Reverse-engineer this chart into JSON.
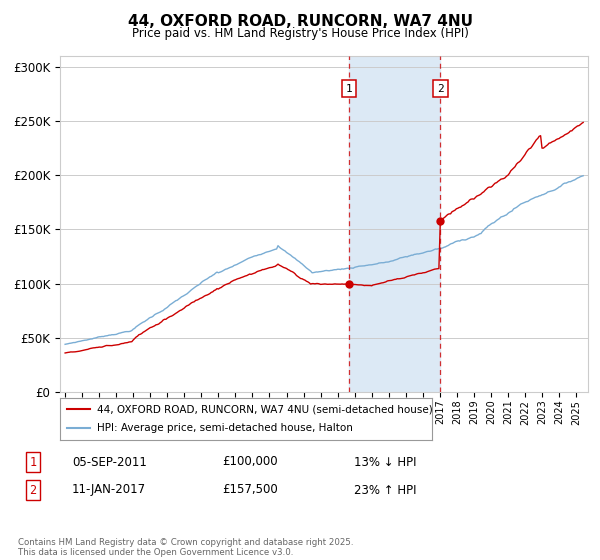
{
  "title": "44, OXFORD ROAD, RUNCORN, WA7 4NU",
  "subtitle": "Price paid vs. HM Land Registry's House Price Index (HPI)",
  "ylabel_ticks": [
    "£0",
    "£50K",
    "£100K",
    "£150K",
    "£200K",
    "£250K",
    "£300K"
  ],
  "ytick_values": [
    0,
    50000,
    100000,
    150000,
    200000,
    250000,
    300000
  ],
  "ylim": [
    0,
    310000
  ],
  "xlim_start": 1994.7,
  "xlim_end": 2025.7,
  "red_color": "#cc0000",
  "blue_color": "#7aadd4",
  "shading_color": "#dce9f5",
  "grid_color": "#cccccc",
  "sale1_x": 2011.68,
  "sale1_y": 100000,
  "sale1_label": "1",
  "sale2_x": 2017.03,
  "sale2_y": 157500,
  "sale2_label": "2",
  "legend_line1": "44, OXFORD ROAD, RUNCORN, WA7 4NU (semi-detached house)",
  "legend_line2": "HPI: Average price, semi-detached house, Halton",
  "annotation1_num": "1",
  "annotation1_date": "05-SEP-2011",
  "annotation1_price": "£100,000",
  "annotation1_hpi": "13% ↓ HPI",
  "annotation2_num": "2",
  "annotation2_date": "11-JAN-2017",
  "annotation2_price": "£157,500",
  "annotation2_hpi": "23% ↑ HPI",
  "footer": "Contains HM Land Registry data © Crown copyright and database right 2025.\nThis data is licensed under the Open Government Licence v3.0."
}
